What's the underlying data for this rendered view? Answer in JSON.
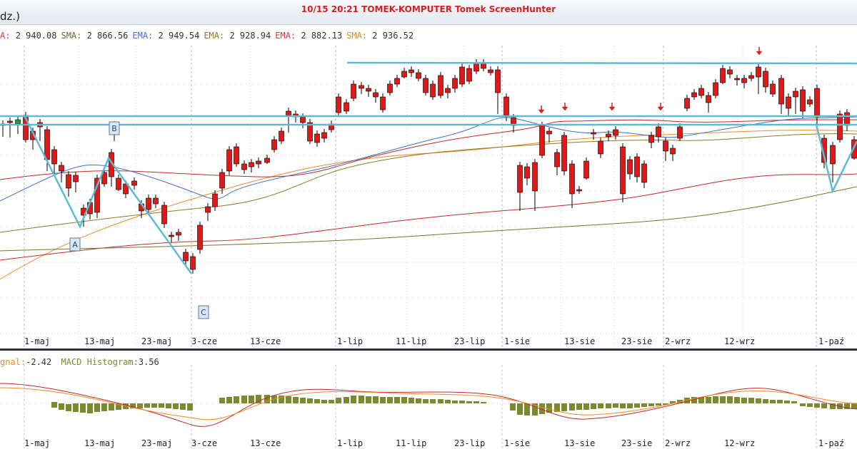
{
  "window": {
    "partial_title": "dz.)",
    "capture_caption": "10/15  20:21  TOMEK-KOMPUTER  Tomek  ScreenHunter"
  },
  "indicators": [
    {
      "name": "A:",
      "value": "2 940.08",
      "color": "#d43a3a"
    },
    {
      "name": "SMA:",
      "value": "2 866.56",
      "color": "#5c6e2a"
    },
    {
      "name": "EMA:",
      "value": "2 949.54",
      "color": "#3d6fcf"
    },
    {
      "name": "EMA:",
      "value": "2 928.94",
      "color": "#8a7a2a"
    },
    {
      "name": "EMA:",
      "value": "2 882.13",
      "color": "#d43a3a"
    },
    {
      "name": "SMA:",
      "value": "2 936.52",
      "color": "#e08a2a"
    }
  ],
  "macd_legend": {
    "signal_label": "gnal:",
    "signal_value": "-2.42",
    "hist_label": "MACD Histogram:",
    "hist_value": "3.56"
  },
  "colors": {
    "up": "#1e9e3a",
    "down": "#e01818",
    "trendline": "#5bbbd6",
    "ema_blue": "#3d6fcf",
    "ema_red": "#c0292b",
    "sma_orange": "#ee8a2a",
    "sma_olive": "#6e7a2a",
    "macd_hist": "#7a8a2e",
    "signal_arrow": "#d42020"
  },
  "chart_data": {
    "type": "candlestick",
    "x_tick_labels": [
      "1-maj",
      "13-maj",
      "23-maj",
      "3-cze",
      "13-cze",
      "1-lip",
      "11-lip",
      "23-lip",
      "1-sie",
      "13-sie",
      "23-sie",
      "2-wrz",
      "12-wrz",
      "1-paź"
    ],
    "wave_labels": [
      "A",
      "B",
      "C"
    ],
    "candles": [
      [
        160,
        185,
        175,
        198
      ],
      [
        4,
        174,
        176,
        192
      ],
      [
        14,
        170,
        172,
        193
      ],
      [
        25,
        174,
        168,
        188
      ],
      [
        36,
        162,
        196,
        200
      ],
      [
        46,
        184,
        196,
        210
      ],
      [
        56,
        172,
        178,
        198
      ],
      [
        66,
        182,
        224,
        240
      ],
      [
        76,
        210,
        230,
        248
      ],
      [
        86,
        232,
        240,
        256
      ],
      [
        96,
        245,
        264,
        276
      ],
      [
        106,
        246,
        255,
        270
      ],
      [
        117,
        292,
        302,
        318
      ],
      [
        126,
        284,
        300,
        308
      ],
      [
        136,
        250,
        298,
        306
      ],
      [
        146,
        242,
        258,
        262
      ],
      [
        156,
        214,
        248,
        262
      ],
      [
        166,
        250,
        266,
        268
      ],
      [
        176,
        258,
        272,
        278
      ],
      [
        188,
        254,
        260,
        266
      ],
      [
        198,
        286,
        296,
        306
      ],
      [
        208,
        278,
        294,
        298
      ],
      [
        218,
        278,
        286,
        292
      ],
      [
        230,
        288,
        314,
        320
      ],
      [
        240,
        330,
        332,
        340
      ],
      [
        250,
        326,
        330,
        338
      ],
      [
        260,
        354,
        366,
        372
      ],
      [
        270,
        360,
        378,
        384
      ],
      [
        280,
        316,
        350,
        356
      ],
      [
        291,
        290,
        298,
        310
      ],
      [
        301,
        272,
        290,
        296
      ],
      [
        311,
        242,
        264,
        272
      ],
      [
        321,
        210,
        240,
        246
      ],
      [
        331,
        206,
        230,
        234
      ],
      [
        342,
        230,
        238,
        244
      ],
      [
        352,
        228,
        234,
        242
      ],
      [
        362,
        226,
        230,
        236
      ],
      [
        374,
        222,
        228,
        230
      ],
      [
        384,
        196,
        210,
        214
      ],
      [
        394,
        184,
        198,
        202
      ],
      [
        404,
        156,
        162,
        186
      ],
      [
        414,
        160,
        164,
        172
      ],
      [
        424,
        164,
        172,
        180
      ],
      [
        434,
        172,
        198,
        202
      ],
      [
        444,
        188,
        200,
        206
      ],
      [
        454,
        186,
        194,
        200
      ],
      [
        464,
        174,
        182,
        186
      ],
      [
        474,
        136,
        158,
        162
      ],
      [
        485,
        144,
        156,
        160
      ],
      [
        495,
        118,
        138,
        142
      ],
      [
        506,
        120,
        124,
        132
      ],
      [
        516,
        124,
        128,
        136
      ],
      [
        526,
        130,
        136,
        144
      ],
      [
        536,
        136,
        154,
        158
      ],
      [
        546,
        118,
        130,
        134
      ],
      [
        556,
        110,
        118,
        122
      ],
      [
        566,
        100,
        108,
        110
      ],
      [
        576,
        98,
        102,
        108
      ],
      [
        586,
        102,
        110,
        114
      ],
      [
        596,
        110,
        130,
        134
      ],
      [
        606,
        118,
        136,
        140
      ],
      [
        617,
        106,
        134,
        138
      ],
      [
        627,
        124,
        130,
        138
      ],
      [
        637,
        110,
        124,
        130
      ],
      [
        647,
        94,
        118,
        122
      ],
      [
        657,
        96,
        114,
        118
      ],
      [
        667,
        88,
        100,
        104
      ],
      [
        677,
        88,
        96,
        100
      ],
      [
        687,
        98,
        102,
        106
      ],
      [
        697,
        98,
        130,
        160
      ],
      [
        709,
        136,
        162,
        170
      ],
      [
        719,
        165,
        176,
        186
      ],
      [
        728,
        232,
        270,
        296
      ],
      [
        738,
        234,
        250,
        260
      ],
      [
        749,
        228,
        268,
        296
      ],
      [
        759,
        176,
        218,
        222
      ],
      [
        769,
        184,
        188,
        200
      ],
      [
        780,
        214,
        234,
        246
      ],
      [
        790,
        190,
        240,
        246
      ],
      [
        801,
        230,
        272,
        292
      ],
      [
        811,
        266,
        268,
        272
      ],
      [
        821,
        226,
        250,
        252
      ],
      [
        831,
        186,
        188,
        196
      ],
      [
        841,
        198,
        216,
        222
      ],
      [
        852,
        188,
        192,
        198
      ],
      [
        862,
        182,
        190,
        196
      ],
      [
        872,
        206,
        272,
        284
      ],
      [
        882,
        224,
        244,
        252
      ],
      [
        892,
        220,
        248,
        256
      ],
      [
        902,
        230,
        256,
        264
      ],
      [
        912,
        190,
        200,
        208
      ],
      [
        922,
        178,
        192,
        200
      ],
      [
        932,
        198,
        212,
        226
      ],
      [
        942,
        208,
        216,
        226
      ],
      [
        952,
        178,
        194,
        198
      ],
      [
        962,
        138,
        152,
        156
      ],
      [
        972,
        130,
        136,
        140
      ],
      [
        982,
        124,
        134,
        138
      ],
      [
        992,
        134,
        144,
        158
      ],
      [
        1002,
        116,
        134,
        138
      ],
      [
        1012,
        96,
        116,
        118
      ],
      [
        1022,
        98,
        104,
        110
      ],
      [
        1032,
        110,
        112,
        120
      ],
      [
        1042,
        110,
        116,
        124
      ],
      [
        1052,
        106,
        110,
        114
      ],
      [
        1062,
        94,
        108,
        132
      ],
      [
        1072,
        100,
        122,
        130
      ],
      [
        1082,
        118,
        132,
        136
      ],
      [
        1094,
        110,
        146,
        160
      ],
      [
        1104,
        136,
        152,
        164
      ],
      [
        1114,
        128,
        136,
        160
      ],
      [
        1124,
        126,
        156,
        166
      ],
      [
        1134,
        140,
        146,
        150
      ],
      [
        1144,
        124,
        164,
        176
      ],
      [
        1154,
        194,
        228,
        236
      ],
      [
        1166,
        204,
        230,
        256
      ],
      [
        1176,
        160,
        196,
        200
      ],
      [
        1186,
        158,
        176,
        184
      ],
      [
        1196,
        196,
        222,
        224
      ]
    ],
    "macd_histogram": [
      [
        76,
        564,
        572
      ],
      [
        86,
        566,
        575
      ],
      [
        96,
        567,
        577
      ],
      [
        106,
        566,
        578
      ],
      [
        116,
        566,
        579
      ],
      [
        126,
        566,
        580
      ],
      [
        136,
        566,
        578
      ],
      [
        146,
        566,
        577
      ],
      [
        156,
        566,
        576
      ],
      [
        166,
        566,
        575
      ],
      [
        176,
        566,
        574
      ],
      [
        186,
        566,
        573
      ],
      [
        196,
        566,
        573
      ],
      [
        206,
        566,
        572
      ],
      [
        216,
        566,
        572
      ],
      [
        226,
        566,
        572
      ],
      [
        236,
        566,
        573
      ],
      [
        246,
        566,
        574
      ],
      [
        256,
        566,
        575
      ],
      [
        266,
        566,
        576
      ],
      [
        311,
        558,
        566
      ],
      [
        321,
        557,
        566
      ],
      [
        331,
        556,
        566
      ],
      [
        342,
        555,
        566
      ],
      [
        352,
        555,
        566
      ],
      [
        362,
        554,
        566
      ],
      [
        374,
        554,
        566
      ],
      [
        384,
        555,
        566
      ],
      [
        394,
        555,
        566
      ],
      [
        404,
        556,
        566
      ],
      [
        414,
        557,
        566
      ],
      [
        424,
        558,
        566
      ],
      [
        434,
        559,
        566
      ],
      [
        444,
        560,
        566
      ],
      [
        454,
        561,
        566
      ],
      [
        464,
        561,
        566
      ],
      [
        474,
        558,
        566
      ],
      [
        485,
        557,
        566
      ],
      [
        495,
        555,
        566
      ],
      [
        506,
        555,
        566
      ],
      [
        516,
        556,
        566
      ],
      [
        526,
        556,
        566
      ],
      [
        536,
        557,
        566
      ],
      [
        546,
        557,
        566
      ],
      [
        556,
        557,
        566
      ],
      [
        566,
        557,
        566
      ],
      [
        576,
        558,
        566
      ],
      [
        586,
        559,
        566
      ],
      [
        596,
        560,
        566
      ],
      [
        606,
        560,
        566
      ],
      [
        617,
        560,
        566
      ],
      [
        627,
        561,
        566
      ],
      [
        637,
        562,
        566
      ],
      [
        647,
        562,
        566
      ],
      [
        657,
        563,
        566
      ],
      [
        667,
        563,
        566
      ],
      [
        677,
        564,
        566
      ],
      [
        718,
        566,
        576
      ],
      [
        728,
        566,
        582
      ],
      [
        738,
        566,
        583
      ],
      [
        749,
        566,
        583
      ],
      [
        759,
        566,
        581
      ],
      [
        769,
        566,
        579
      ],
      [
        780,
        566,
        578
      ],
      [
        790,
        566,
        577
      ],
      [
        801,
        566,
        576
      ],
      [
        811,
        566,
        575
      ],
      [
        821,
        566,
        575
      ],
      [
        831,
        566,
        574
      ],
      [
        841,
        566,
        573
      ],
      [
        852,
        566,
        573
      ],
      [
        862,
        566,
        572
      ],
      [
        872,
        566,
        573
      ],
      [
        882,
        566,
        573
      ],
      [
        892,
        566,
        572
      ],
      [
        902,
        566,
        571
      ],
      [
        912,
        566,
        570
      ],
      [
        922,
        566,
        569
      ],
      [
        932,
        566,
        568
      ],
      [
        942,
        563,
        566
      ],
      [
        952,
        561,
        566
      ],
      [
        962,
        558,
        566
      ],
      [
        972,
        557,
        566
      ],
      [
        982,
        557,
        566
      ],
      [
        992,
        557,
        566
      ],
      [
        1002,
        556,
        566
      ],
      [
        1012,
        556,
        566
      ],
      [
        1022,
        556,
        566
      ],
      [
        1032,
        557,
        566
      ],
      [
        1042,
        558,
        566
      ],
      [
        1052,
        558,
        566
      ],
      [
        1062,
        559,
        566
      ],
      [
        1072,
        560,
        566
      ],
      [
        1082,
        561,
        566
      ],
      [
        1092,
        561,
        566
      ],
      [
        1102,
        562,
        566
      ],
      [
        1112,
        563,
        566
      ],
      [
        1124,
        566,
        570
      ],
      [
        1134,
        566,
        571
      ],
      [
        1144,
        566,
        572
      ],
      [
        1154,
        566,
        573
      ],
      [
        1166,
        566,
        574
      ],
      [
        1176,
        566,
        574
      ],
      [
        1186,
        566,
        574
      ],
      [
        1196,
        566,
        574
      ]
    ]
  }
}
